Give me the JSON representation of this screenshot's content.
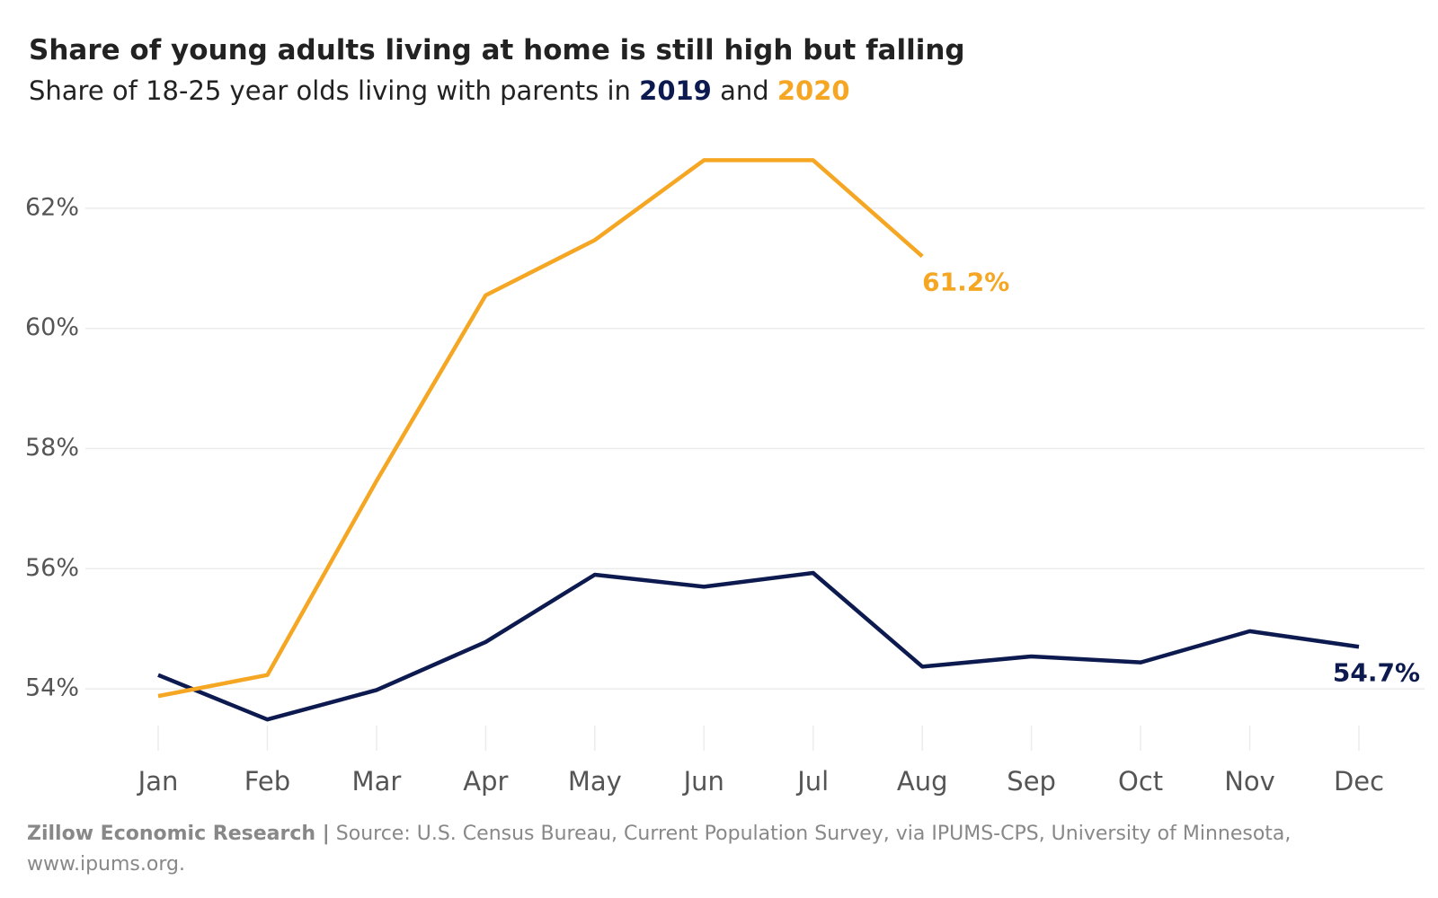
{
  "chart_data": {
    "type": "line",
    "title": "Share of young adults living at home is still high but falling",
    "subtitle": {
      "text": "Share of 18-25 year olds living with parents in",
      "joiner": "and"
    },
    "categories": [
      "Jan",
      "Feb",
      "Mar",
      "Apr",
      "May",
      "Jun",
      "Jul",
      "Aug",
      "Sep",
      "Oct",
      "Nov",
      "Dec"
    ],
    "series": [
      {
        "name": "2019",
        "color": "#0d1a4f",
        "values": [
          54.23,
          53.49,
          53.98,
          54.78,
          55.9,
          55.7,
          55.93,
          54.37,
          54.54,
          54.44,
          54.96,
          54.7
        ],
        "value_labels": [
          null,
          null,
          null,
          null,
          null,
          null,
          null,
          null,
          null,
          null,
          null,
          "54.7%"
        ]
      },
      {
        "name": "2020",
        "color": "#f5a623",
        "values": [
          53.88,
          54.23,
          57.46,
          60.55,
          61.47,
          62.8,
          62.8,
          61.2,
          null,
          null,
          null,
          null
        ],
        "value_labels": [
          null,
          null,
          null,
          null,
          null,
          null,
          null,
          "61.2%",
          null,
          null,
          null,
          null
        ]
      }
    ],
    "ylim": [
      53,
      63
    ],
    "yticks": [
      {
        "value": 54,
        "label": "54%"
      },
      {
        "value": 56,
        "label": "56%"
      },
      {
        "value": 58,
        "label": "58%"
      },
      {
        "value": 60,
        "label": "60%"
      },
      {
        "value": 62,
        "label": "62%"
      }
    ],
    "grid": true,
    "source_org": "Zillow Economic Research |",
    "source": "Source:  U.S. Census Bureau, Current Population Survey, via IPUMS-CPS, University of Minnesota, www.ipums.org."
  }
}
